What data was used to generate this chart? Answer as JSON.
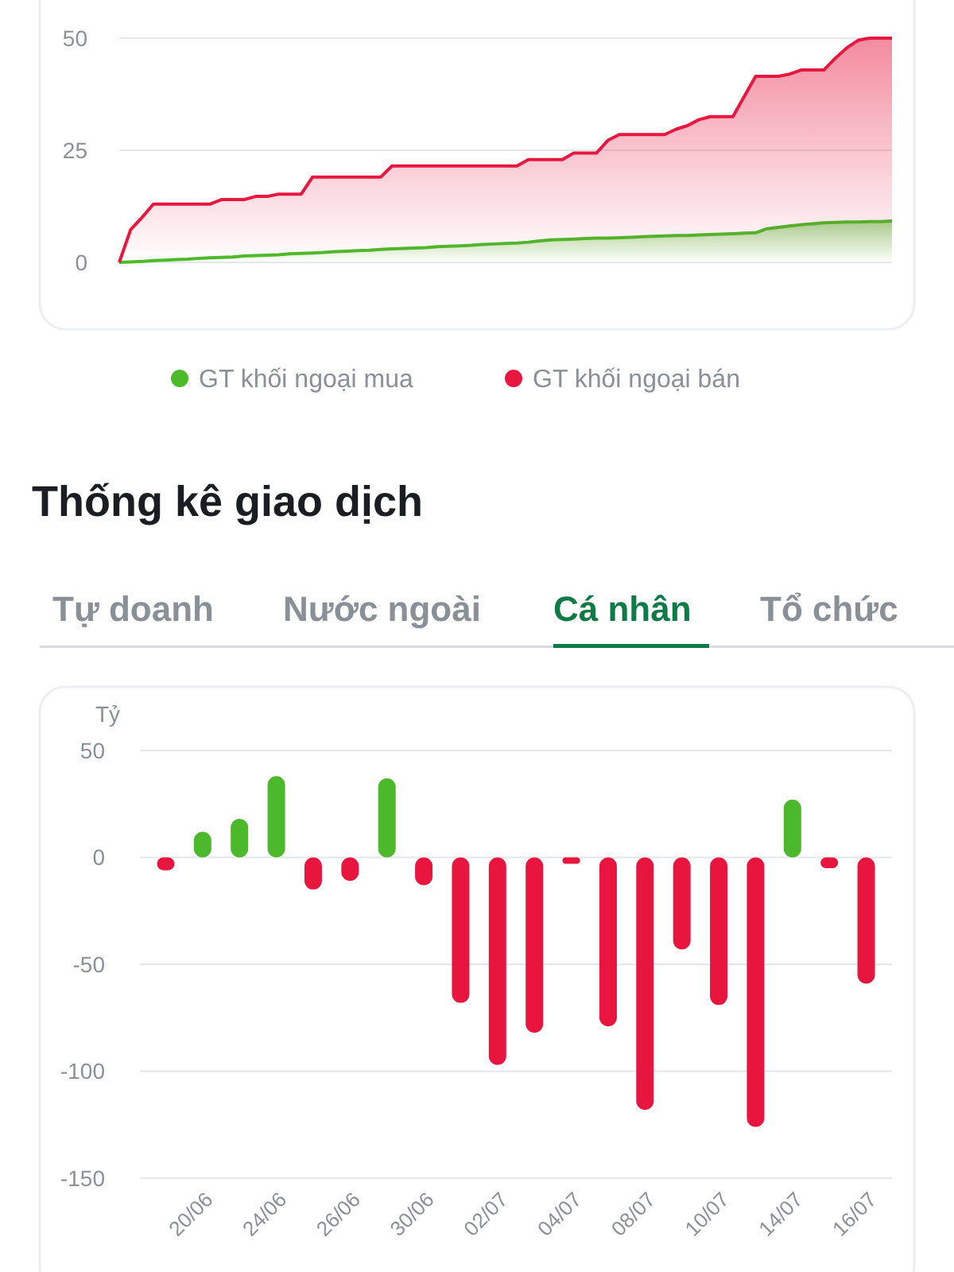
{
  "chart_data": [
    {
      "type": "area",
      "categories": [
        null,
        null,
        null,
        null,
        null,
        null,
        null,
        null,
        null,
        null,
        null,
        null,
        null,
        null,
        null,
        null,
        null,
        null,
        null,
        null,
        null,
        null,
        null,
        null,
        null,
        null,
        null,
        null,
        null,
        null,
        null,
        null,
        null,
        null,
        null,
        null,
        null,
        null,
        null,
        null,
        null,
        null,
        null,
        null,
        null,
        null,
        null,
        null,
        null,
        null,
        null,
        null,
        null,
        null,
        null,
        null,
        null,
        null,
        null,
        null,
        null,
        null,
        null,
        null,
        null,
        null,
        null,
        null,
        null
      ],
      "series": [
        {
          "name": "GT khối ngoại mua",
          "color": "#4cbb2a",
          "values": [
            0,
            0.1,
            0.2,
            0.4,
            0.5,
            0.6,
            0.7,
            0.9,
            1.0,
            1.1,
            1.2,
            1.4,
            1.5,
            1.6,
            1.7,
            1.9,
            2.0,
            2.1,
            2.2,
            2.4,
            2.5,
            2.6,
            2.7,
            2.9,
            3.0,
            3.1,
            3.2,
            3.3,
            3.5,
            3.6,
            3.7,
            3.8,
            4.0,
            4.1,
            4.2,
            4.3,
            4.5,
            4.8,
            5.0,
            5.1,
            5.2,
            5.3,
            5.4,
            5.4,
            5.5,
            5.6,
            5.7,
            5.8,
            5.9,
            6.0,
            6.0,
            6.1,
            6.2,
            6.3,
            6.4,
            6.5,
            6.6,
            7.5,
            7.8,
            8.1,
            8.4,
            8.6,
            8.8,
            8.9,
            9.0,
            9.0,
            9.1,
            9.1,
            9.2
          ]
        },
        {
          "name": "GT khối ngoại bán",
          "color": "#e8173f",
          "values": [
            0,
            7.3,
            10,
            13,
            13,
            13,
            13,
            13,
            13,
            14,
            14,
            14,
            14.7,
            14.7,
            15.2,
            15.2,
            15.2,
            19,
            19,
            19,
            19,
            19,
            19,
            19,
            21.5,
            21.5,
            21.5,
            21.5,
            21.5,
            21.5,
            21.5,
            21.5,
            21.5,
            21.5,
            21.5,
            21.5,
            22.9,
            22.9,
            22.9,
            22.9,
            24.4,
            24.4,
            24.4,
            27.2,
            28.5,
            28.5,
            28.5,
            28.5,
            28.5,
            29.7,
            30.5,
            31.8,
            32.5,
            32.5,
            32.5,
            37,
            41.5,
            41.5,
            41.5,
            42,
            42.9,
            42.9,
            42.9,
            45.5,
            47.8,
            49.5,
            50,
            50,
            50
          ]
        }
      ],
      "ylim": [
        0,
        50
      ],
      "yticks": [
        0,
        25,
        50
      ],
      "grid": "y",
      "legend": "bottom",
      "line_style": "solid",
      "marker": "none"
    },
    {
      "type": "bar",
      "title": "Thống kê giao dịch",
      "ylabel": "Tỷ",
      "annotations": [
        "Tự doanh",
        "Nước ngoài",
        "Cá nhân",
        "Tổ chức"
      ],
      "categories": [
        null,
        "20/06",
        null,
        "24/06",
        null,
        "26/06",
        null,
        "30/06",
        null,
        "02/07",
        null,
        "04/07",
        null,
        "08/07",
        null,
        "10/07",
        null,
        "14/07",
        null,
        "16/07"
      ],
      "values": [
        -6,
        12,
        18,
        38,
        -15,
        -11,
        37,
        -13,
        -68,
        -97,
        -82,
        -3,
        -79,
        -118,
        -43,
        -69,
        -126,
        27,
        -5,
        -59
      ],
      "colors": [
        "#e8163f",
        "#4cb82c",
        "#4cb82c",
        "#4cb82c",
        "#e8163f",
        "#e8163f",
        "#4cb82c",
        "#e8163f",
        "#e8163f",
        "#e8163f",
        "#e8163f",
        "#e8163f",
        "#e8163f",
        "#e8163f",
        "#e8163f",
        "#e8163f",
        "#e8163f",
        "#4cb82c",
        "#e8163f",
        "#e8163f"
      ],
      "ylim": [
        -150,
        50
      ],
      "yticks": [
        -150,
        -100,
        -50,
        0,
        50
      ],
      "grid": "y"
    }
  ]
}
